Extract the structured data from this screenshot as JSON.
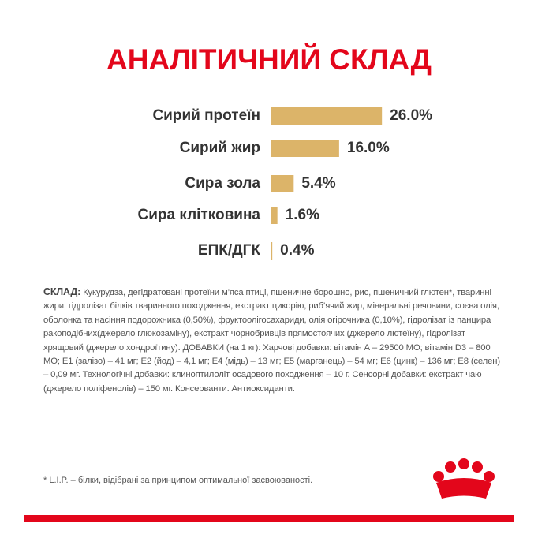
{
  "chart_data": {
    "type": "bar",
    "title": "АНАЛІТИЧНИЙ СКЛАД",
    "categories": [
      "Сирий протеїн",
      "Сирий жир",
      "Сира зола",
      "Сира клітковина",
      "ЕПК/ДГК"
    ],
    "values": [
      26.0,
      16.0,
      5.4,
      1.6,
      0.4
    ],
    "value_labels": [
      "26.0%",
      "16.0%",
      "5.4%",
      "1.6%",
      "0.4%"
    ],
    "color": "#dcb469"
  },
  "composition": {
    "label": "СКЛАД:",
    "text": "Кукурудза, дегідратовані протеїни м’яса птиці, пшеничне борошно, рис, пшеничний глютен*, тваринні жири, гідролізат білків тваринного походження, екстракт цикорію, риб’ячий жир, мінеральні речовини, соєва олія, оболонка та насіння подорожника (0,50%), фруктоолігосахариди, олія огірочника (0,10%), гідролізат із панцира ракоподібних(джерело глюкозаміну), екстракт чорнобривців прямостоячих (джерело лютеїну), гідролізат хрящовий (джерело хондроїтину). ДОБАВКИ (на 1 кг): Харчові добавки: вітамін А – 29500 МО; вітамін D3 – 800 МО; Е1 (залізо) – 41 мг; Е2 (йод) – 4,1 мг; Е4 (мідь) – 13 мг; Е5 (марганець) – 54 мг; Е6 (цинк) – 136 мг; Е8 (селен) – 0,09 мг. Технологічні добавки: клиноптилоліт осадового походження – 10 г. Сенсорні добавки: екстракт чаю (джерело поліфенолів) – 150 мг. Консерванти. Антиоксиданти."
  },
  "footnote": "* L.I.P. – білки, відібрані за принципом оптимальної засвоюваності."
}
